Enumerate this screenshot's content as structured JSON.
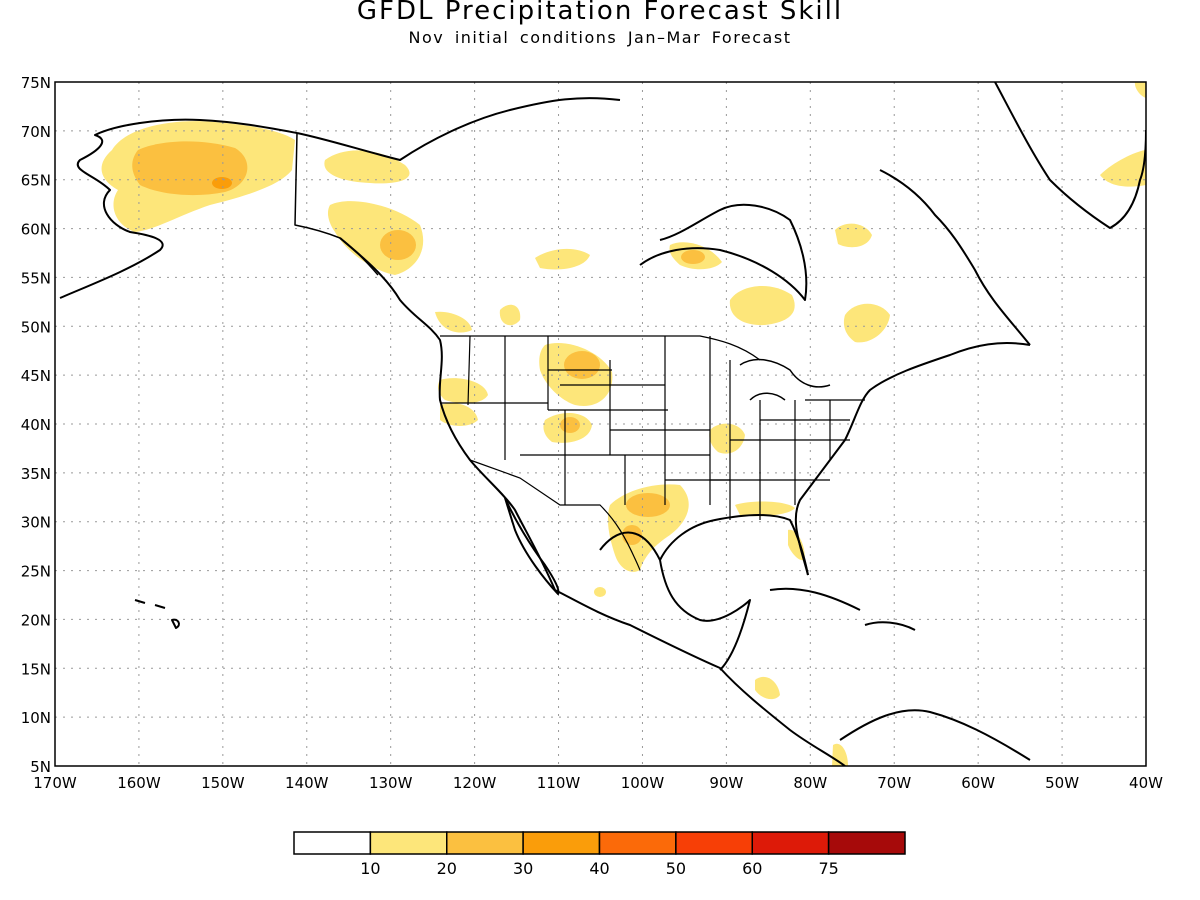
{
  "title": "GFDL Precipitation Forecast Skill",
  "subtitle": "Nov initial conditions  Jan–Mar Forecast",
  "map": {
    "lon_labels": [
      "170W",
      "160W",
      "150W",
      "140W",
      "130W",
      "120W",
      "110W",
      "100W",
      "90W",
      "80W",
      "70W",
      "60W",
      "50W",
      "40W"
    ],
    "lat_labels": [
      "75N",
      "70N",
      "65N",
      "60N",
      "55N",
      "50N",
      "45N",
      "40N",
      "35N",
      "30N",
      "25N",
      "20N",
      "15N",
      "10N",
      "5N"
    ],
    "lon_range": [
      -170,
      -40
    ],
    "lat_range": [
      5,
      75
    ],
    "gridlines": "dotted"
  },
  "colorbar": {
    "colors": [
      "#ffffff",
      "#fde67a",
      "#fbc040",
      "#fa9d0a",
      "#fb6a09",
      "#f73f06",
      "#dd1a08",
      "#a60a0a"
    ],
    "labels": [
      "10",
      "20",
      "30",
      "40",
      "50",
      "60",
      "75"
    ]
  }
}
